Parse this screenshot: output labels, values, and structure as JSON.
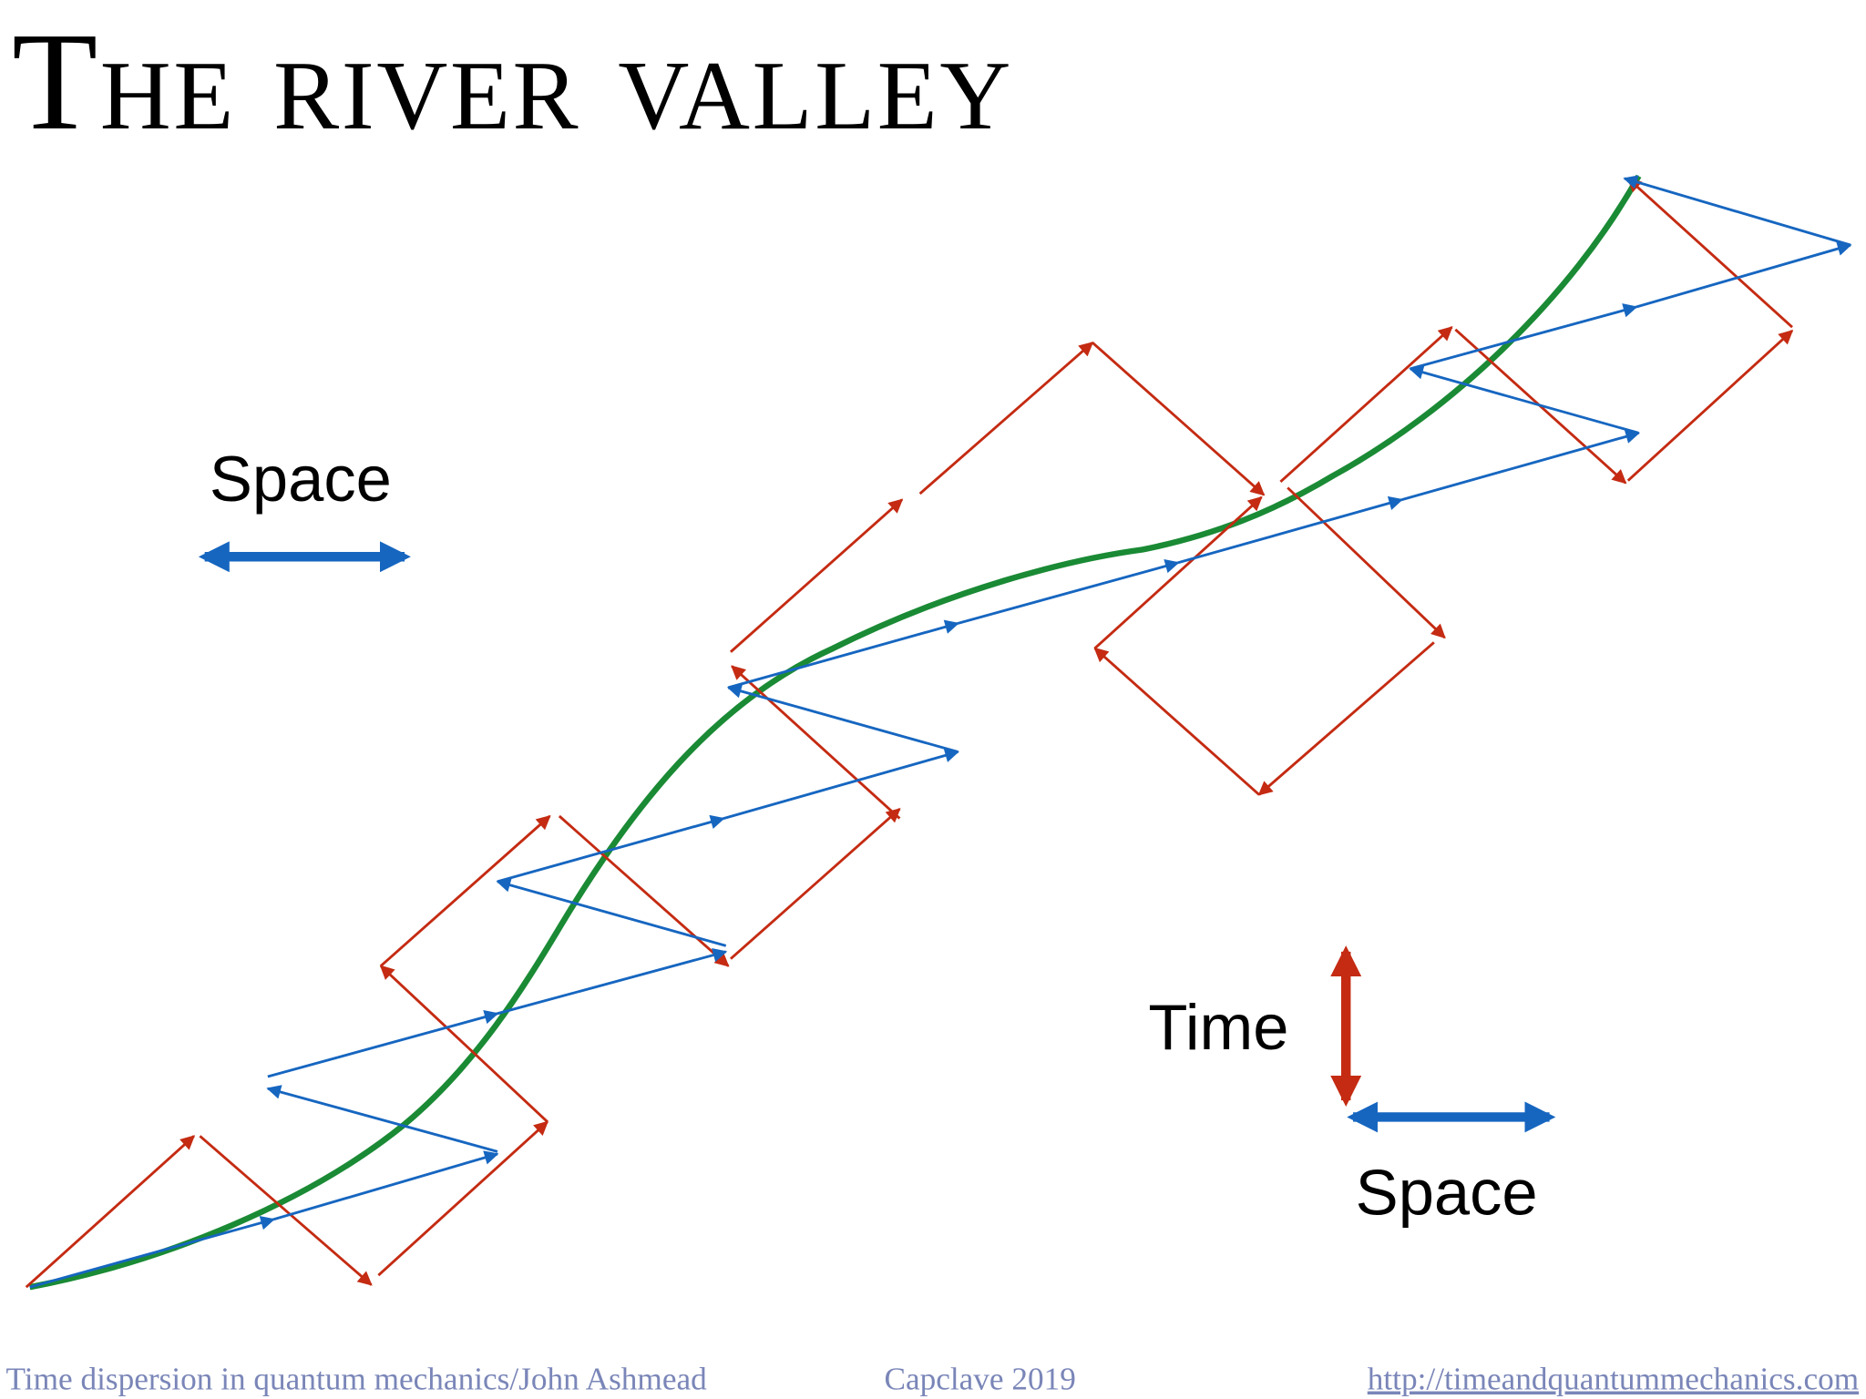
{
  "title": "The river valley",
  "labels": {
    "space_top": "Space",
    "time": "Time",
    "space_bottom": "Space"
  },
  "footer": {
    "left": "Time dispersion in quantum mechanics/John Ashmead",
    "center": "Capclave 2019",
    "right": "http://timeandquantummechanics.com"
  }
}
